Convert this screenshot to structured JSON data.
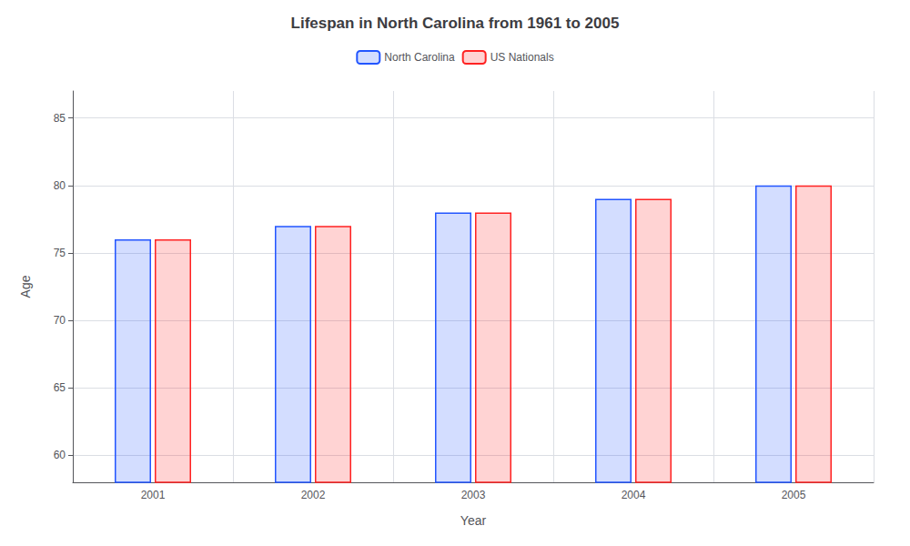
{
  "chart_data": {
    "type": "bar",
    "title": "Lifespan in North Carolina from 1961 to 2005",
    "xlabel": "Year",
    "ylabel": "Age",
    "categories": [
      "2001",
      "2002",
      "2003",
      "2004",
      "2005"
    ],
    "series": [
      {
        "name": "North Carolina",
        "color": "#2255ff",
        "values": [
          76,
          77,
          78,
          79,
          80
        ]
      },
      {
        "name": "US Nationals",
        "color": "#ff2222",
        "values": [
          76,
          77,
          78,
          79,
          80
        ]
      }
    ],
    "ylim": [
      58,
      87
    ],
    "yticks": [
      60,
      65,
      70,
      75,
      80,
      85
    ],
    "grid": true,
    "legend": "top"
  }
}
